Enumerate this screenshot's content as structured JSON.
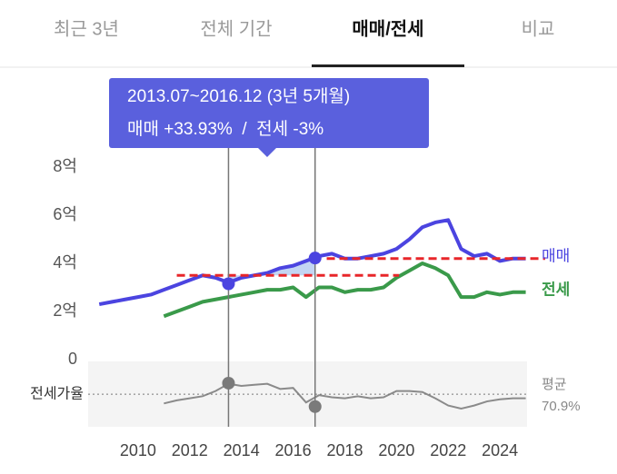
{
  "tabs": {
    "items": [
      "최근 3년",
      "전체 기간",
      "매매/전세",
      "비교"
    ],
    "active": 2
  },
  "tooltip": {
    "period": "2013.07~2016.12 (3년 5개월)",
    "change": "매매 +33.93%  /  전세 -3%"
  },
  "chart_data": {
    "type": "line",
    "x": [
      2008.5,
      2009,
      2009.5,
      2010,
      2010.5,
      2011,
      2011.5,
      2012,
      2012.5,
      2013,
      2013.5,
      2014,
      2014.5,
      2015,
      2015.5,
      2016,
      2016.5,
      2017,
      2017.5,
      2018,
      2018.5,
      2019,
      2019.5,
      2020,
      2020.5,
      2021,
      2021.5,
      2022,
      2022.5,
      2023,
      2023.5,
      2024,
      2024.5,
      2025
    ],
    "series": [
      {
        "name": "매매",
        "color": "#4b44e0",
        "values": [
          2.3,
          2.4,
          2.5,
          2.6,
          2.7,
          2.9,
          3.1,
          3.3,
          3.5,
          3.4,
          3.2,
          3.4,
          3.5,
          3.6,
          3.8,
          3.9,
          4.1,
          4.3,
          4.4,
          4.2,
          4.2,
          4.3,
          4.4,
          4.6,
          5.0,
          5.5,
          5.7,
          5.8,
          4.6,
          4.3,
          4.4,
          4.1,
          4.2,
          4.2
        ]
      },
      {
        "name": "전세",
        "color": "#3a9a4a",
        "values": [
          null,
          null,
          null,
          null,
          null,
          1.8,
          2.0,
          2.2,
          2.4,
          2.5,
          2.6,
          2.7,
          2.8,
          2.9,
          2.9,
          3.0,
          2.6,
          3.0,
          3.0,
          2.8,
          2.9,
          2.9,
          3.0,
          3.4,
          3.7,
          4.0,
          3.8,
          3.5,
          2.6,
          2.6,
          2.8,
          2.7,
          2.8,
          2.8
        ]
      }
    ],
    "xlim": [
      2008.07,
      2025.05
    ],
    "xticks": [
      2010,
      2012,
      2014,
      2016,
      2018,
      2020,
      2022,
      2024
    ],
    "ylim": [
      0,
      8
    ],
    "yticks": [
      0,
      {
        "value": 2,
        "label": "2억"
      },
      {
        "value": 4,
        "label": "4억"
      },
      {
        "value": 6,
        "label": "6억"
      },
      {
        "value": 8,
        "label": "8억"
      }
    ],
    "reference_lines": [
      {
        "value": 3.5,
        "x": [
          2011.5,
          2020.1
        ],
        "color": "#e8262a"
      },
      {
        "value": 4.2,
        "x": [
          2017.3,
          2025.75
        ],
        "color": "#e8262a"
      }
    ],
    "selection": {
      "x": [
        2013.5,
        2016.85
      ],
      "sale": [
        3.15,
        4.22
      ],
      "ratio": [
        81.6,
        59.0
      ]
    },
    "ratio": {
      "label": "전세가율",
      "color": "#8a8a8a",
      "ylim": [
        50,
        100
      ],
      "values": [
        null,
        null,
        null,
        null,
        null,
        62,
        65,
        67,
        69,
        74,
        81,
        79,
        80,
        81,
        76,
        77,
        63,
        70,
        68,
        67,
        69,
        67,
        68,
        74,
        74,
        73,
        67,
        60,
        57,
        60,
        64,
        66,
        67,
        67
      ],
      "average": {
        "value": 70.9,
        "label": "70.9%"
      },
      "average_label": "평균"
    }
  }
}
